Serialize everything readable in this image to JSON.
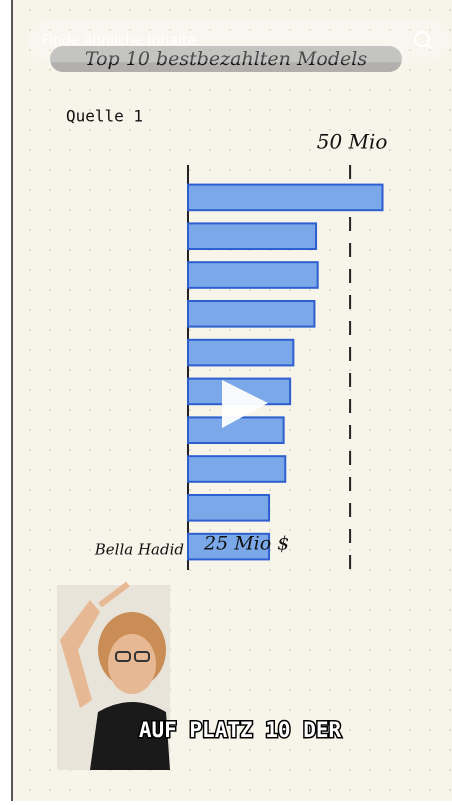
{
  "search": {
    "placeholder": "Finde ähnliche Inhalte"
  },
  "video": {
    "title": "Top 10 bestbezahlten Models",
    "source": "Quelle 1",
    "caption": "AUF PLATZ 10 DER"
  },
  "chart_data": {
    "type": "bar",
    "orientation": "horizontal",
    "categories": [
      null,
      null,
      null,
      null,
      null,
      null,
      null,
      null,
      null,
      "Bella Hadid"
    ],
    "values": [
      60,
      39.5,
      40,
      39,
      32.5,
      31.5,
      29.5,
      30,
      25,
      25
    ],
    "value_labels": [
      null,
      null,
      null,
      null,
      null,
      null,
      null,
      null,
      null,
      "25 Mio $"
    ],
    "color": "#7ba8e8",
    "xlim": [
      0,
      62
    ],
    "xticks": [
      {
        "value": 50,
        "label": "50 Mio"
      }
    ]
  }
}
